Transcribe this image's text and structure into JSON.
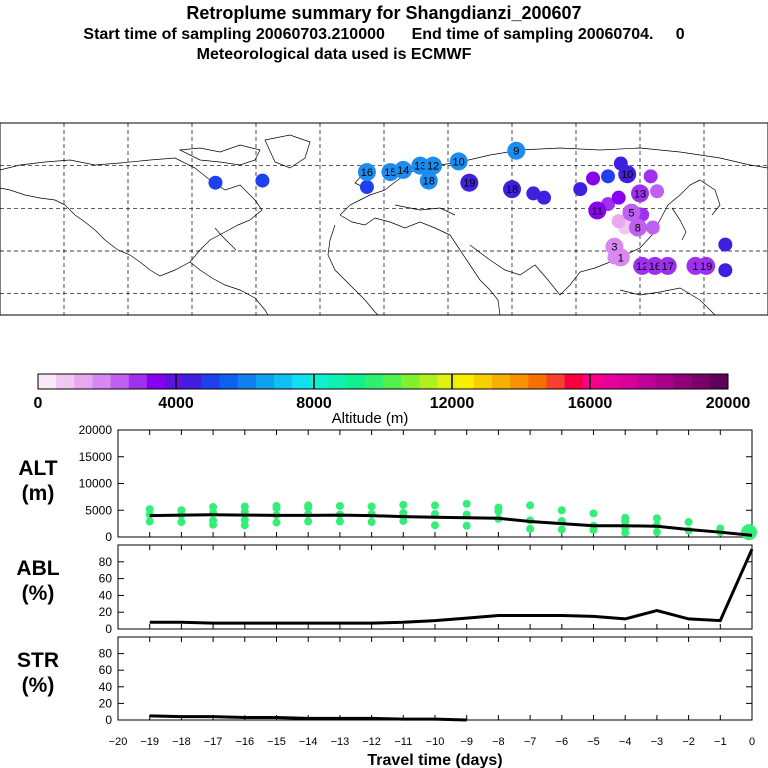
{
  "header": {
    "title": "Retroplume summary for Shangdianzi_200607",
    "subtitle_start": "Start time of sampling 20060703.210000",
    "subtitle_end": "End time of sampling 20060704.",
    "subtitle_end_value": "0",
    "met_line": "Meteorological data used is ECMWF"
  },
  "colors": {
    "line": "#000000",
    "scatter": "#33ee77",
    "grid": "#000000"
  },
  "colorbar": {
    "label": "Altitude (m)",
    "ticks": [
      "0",
      "4000",
      "8000",
      "12000",
      "16000",
      "20000"
    ],
    "min": 0,
    "max": 20000,
    "colors": [
      "#f8e8f8",
      "#f0c8f0",
      "#e8a8f0",
      "#d888f0",
      "#c060f0",
      "#a030f0",
      "#8800f0",
      "#6010e0",
      "#4020e0",
      "#2040f0",
      "#1060f0",
      "#1080f0",
      "#10a0f0",
      "#10c0f0",
      "#10e0f0",
      "#10f0d0",
      "#10f0b0",
      "#10f090",
      "#30f070",
      "#50f050",
      "#80f030",
      "#b0f020",
      "#e0f010",
      "#f8f000",
      "#f8d000",
      "#f8b000",
      "#f89000",
      "#f87000",
      "#f84030",
      "#f80040",
      "#f8008a",
      "#e8009a",
      "#d8009a",
      "#c0009a",
      "#a8008a",
      "#900078",
      "#780068",
      "#600058"
    ]
  },
  "map": {
    "labels": [
      {
        "text": "16",
        "lon": -8,
        "lat": 57,
        "color": "#1c8cf0"
      },
      {
        "text": "15",
        "lon": 3,
        "lat": 57,
        "color": "#1c8cf0"
      },
      {
        "text": "14",
        "lon": 9,
        "lat": 58,
        "color": "#1c8cf0"
      },
      {
        "text": "13",
        "lon": 17,
        "lat": 60,
        "color": "#1c8cf0"
      },
      {
        "text": "12",
        "lon": 23,
        "lat": 60,
        "color": "#1c8cf0"
      },
      {
        "text": "10",
        "lon": 35,
        "lat": 62,
        "color": "#1c8cf0"
      },
      {
        "text": "18",
        "lon": 21,
        "lat": 53,
        "color": "#1c8cf0"
      },
      {
        "text": "19",
        "lon": 40,
        "lat": 52,
        "color": "#4020e0"
      },
      {
        "text": "18",
        "lon": 60,
        "lat": 49,
        "color": "#4020e0"
      },
      {
        "text": "9",
        "lon": 62,
        "lat": 67,
        "color": "#1c8cf0"
      },
      {
        "text": "11",
        "lon": 100,
        "lat": 39,
        "color": "#8800f0"
      },
      {
        "text": "10",
        "lon": 114,
        "lat": 56,
        "color": "#4020e0"
      },
      {
        "text": "13",
        "lon": 120,
        "lat": 47,
        "color": "#a030f0"
      },
      {
        "text": "5",
        "lon": 116,
        "lat": 38,
        "color": "#c060f0"
      },
      {
        "text": "8",
        "lon": 119,
        "lat": 31,
        "color": "#c060f0"
      },
      {
        "text": "3",
        "lon": 108,
        "lat": 22,
        "color": "#d888f0"
      },
      {
        "text": "1",
        "lon": 111,
        "lat": 17,
        "color": "#d888f0"
      },
      {
        "text": "12",
        "lon": 121,
        "lat": 13,
        "color": "#a030f0"
      },
      {
        "text": "16",
        "lon": 127,
        "lat": 13,
        "color": "#a030f0"
      },
      {
        "text": "17",
        "lon": 133,
        "lat": 13,
        "color": "#a030f0"
      },
      {
        "text": "1",
        "lon": 146,
        "lat": 13,
        "color": "#a030f0"
      },
      {
        "text": "19",
        "lon": 151,
        "lat": 13,
        "color": "#a030f0"
      }
    ],
    "blobs": [
      {
        "lon": -8,
        "lat": 50,
        "color": "#2040f0"
      },
      {
        "lon": -57,
        "lat": 53,
        "color": "#2040f0"
      },
      {
        "lon": -79,
        "lat": 52,
        "color": "#2040f0"
      },
      {
        "lon": 70,
        "lat": 47,
        "color": "#4020e0"
      },
      {
        "lon": 75,
        "lat": 45,
        "color": "#4020e0"
      },
      {
        "lon": 92,
        "lat": 49,
        "color": "#4020e0"
      },
      {
        "lon": 98,
        "lat": 54,
        "color": "#8800f0"
      },
      {
        "lon": 105,
        "lat": 42,
        "color": "#a030f0"
      },
      {
        "lon": 110,
        "lat": 45,
        "color": "#8800f0"
      },
      {
        "lon": 125,
        "lat": 55,
        "color": "#a030f0"
      },
      {
        "lon": 128,
        "lat": 48,
        "color": "#c060f0"
      },
      {
        "lon": 113,
        "lat": 31,
        "color": "#f0c8f0"
      },
      {
        "lon": 110,
        "lat": 34,
        "color": "#e8a8f0"
      },
      {
        "lon": 121,
        "lat": 37,
        "color": "#a030f0"
      },
      {
        "lon": 126,
        "lat": 31,
        "color": "#c060f0"
      },
      {
        "lon": 108,
        "lat": 17,
        "color": "#d888f0"
      },
      {
        "lon": 160,
        "lat": 11,
        "color": "#4020e0"
      },
      {
        "lon": 160,
        "lat": 23,
        "color": "#4020e0"
      },
      {
        "lon": 111,
        "lat": 61,
        "color": "#4020e0"
      },
      {
        "lon": 105,
        "lat": 55,
        "color": "#2040f0"
      }
    ]
  },
  "chart_data": [
    {
      "type": "scatter",
      "name": "ALT",
      "ylabel": "ALT\n(m)",
      "ylabel_lines": [
        "ALT",
        "(m)"
      ],
      "ylim": [
        0,
        20000
      ],
      "yticks": [
        "0",
        "5000",
        "10000",
        "15000",
        "20000"
      ],
      "yticks_values": [
        0,
        5000,
        10000,
        15000,
        20000
      ],
      "mean_line": {
        "x": [
          -19,
          -18,
          -17,
          -16,
          -15,
          -14,
          -13,
          -12,
          -11,
          -10,
          -9,
          -8,
          -7,
          -6,
          -5,
          -4,
          -3,
          -2,
          -1,
          0
        ],
        "y": [
          4000,
          4100,
          4150,
          4100,
          4050,
          4050,
          4100,
          4000,
          3800,
          3700,
          3600,
          3500,
          2900,
          2500,
          2100,
          2100,
          2000,
          1400,
          900,
          300
        ]
      },
      "points": [
        {
          "x": -19,
          "y": [
            5200,
            4200,
            2900
          ]
        },
        {
          "x": -18,
          "y": [
            5000,
            4100,
            2800
          ]
        },
        {
          "x": -17,
          "y": [
            5600,
            4500,
            3100,
            2300
          ]
        },
        {
          "x": -16,
          "y": [
            5700,
            4700,
            3200,
            2200
          ]
        },
        {
          "x": -15,
          "y": [
            5800,
            5400,
            4100,
            2700
          ]
        },
        {
          "x": -14,
          "y": [
            5900,
            5500,
            4300,
            2900
          ]
        },
        {
          "x": -13,
          "y": [
            5800,
            4200,
            2900
          ]
        },
        {
          "x": -12,
          "y": [
            5700,
            4300,
            2800
          ]
        },
        {
          "x": -11,
          "y": [
            6000,
            4500,
            3000
          ]
        },
        {
          "x": -10,
          "y": [
            5900,
            4300,
            2200
          ]
        },
        {
          "x": -9,
          "y": [
            6200,
            4200,
            2100
          ]
        },
        {
          "x": -8,
          "y": [
            5500,
            4800,
            3400
          ]
        },
        {
          "x": -7,
          "y": [
            5900,
            3100,
            1500
          ]
        },
        {
          "x": -6,
          "y": [
            5000,
            3000,
            1400
          ]
        },
        {
          "x": -5,
          "y": [
            4400,
            2100,
            1300
          ]
        },
        {
          "x": -4,
          "y": [
            3600,
            2900,
            1700,
            800
          ]
        },
        {
          "x": -3,
          "y": [
            3500,
            2200,
            900
          ]
        },
        {
          "x": -2,
          "y": [
            2800,
            1200
          ]
        },
        {
          "x": -1,
          "y": [
            1600,
            900
          ]
        },
        {
          "x": 0,
          "y": [
            1300,
            700
          ]
        }
      ]
    },
    {
      "type": "line",
      "name": "ABL",
      "ylabel_lines": [
        "ABL",
        "(%)"
      ],
      "ylim": [
        0,
        100
      ],
      "yticks": [
        "0",
        "20",
        "40",
        "60",
        "80"
      ],
      "yticks_values": [
        0,
        20,
        40,
        60,
        80
      ],
      "x": [
        -19,
        -18,
        -17,
        -16,
        -15,
        -14,
        -13,
        -12,
        -11,
        -10,
        -9,
        -8,
        -7,
        -6,
        -5,
        -4,
        -3,
        -2,
        -1,
        0
      ],
      "y": [
        8,
        8,
        7,
        7,
        7,
        7,
        7,
        7,
        8,
        10,
        13,
        16,
        16,
        16,
        15,
        12,
        22,
        12,
        10,
        95
      ]
    },
    {
      "type": "line",
      "name": "STR",
      "ylabel_lines": [
        "STR",
        "(%)"
      ],
      "ylim": [
        0,
        100
      ],
      "yticks": [
        "0",
        "20",
        "40",
        "60",
        "80"
      ],
      "yticks_values": [
        0,
        20,
        40,
        60,
        80
      ],
      "x": [
        -19,
        -18,
        -17,
        -16,
        -15,
        -14,
        -13,
        -12,
        -11,
        -10,
        -9
      ],
      "y": [
        5,
        4,
        4,
        3,
        3,
        2,
        2,
        2,
        1,
        1,
        0
      ]
    }
  ],
  "xaxis": {
    "label": "Travel time (days)",
    "xlim": [
      -20,
      0
    ],
    "ticks": [
      "−20",
      "−19",
      "−18",
      "−17",
      "−16",
      "−15",
      "−14",
      "−13",
      "−12",
      "−11",
      "−10",
      "−9",
      "−8",
      "−7",
      "−6",
      "−5",
      "−4",
      "−3",
      "−2",
      "−1",
      "0"
    ]
  }
}
